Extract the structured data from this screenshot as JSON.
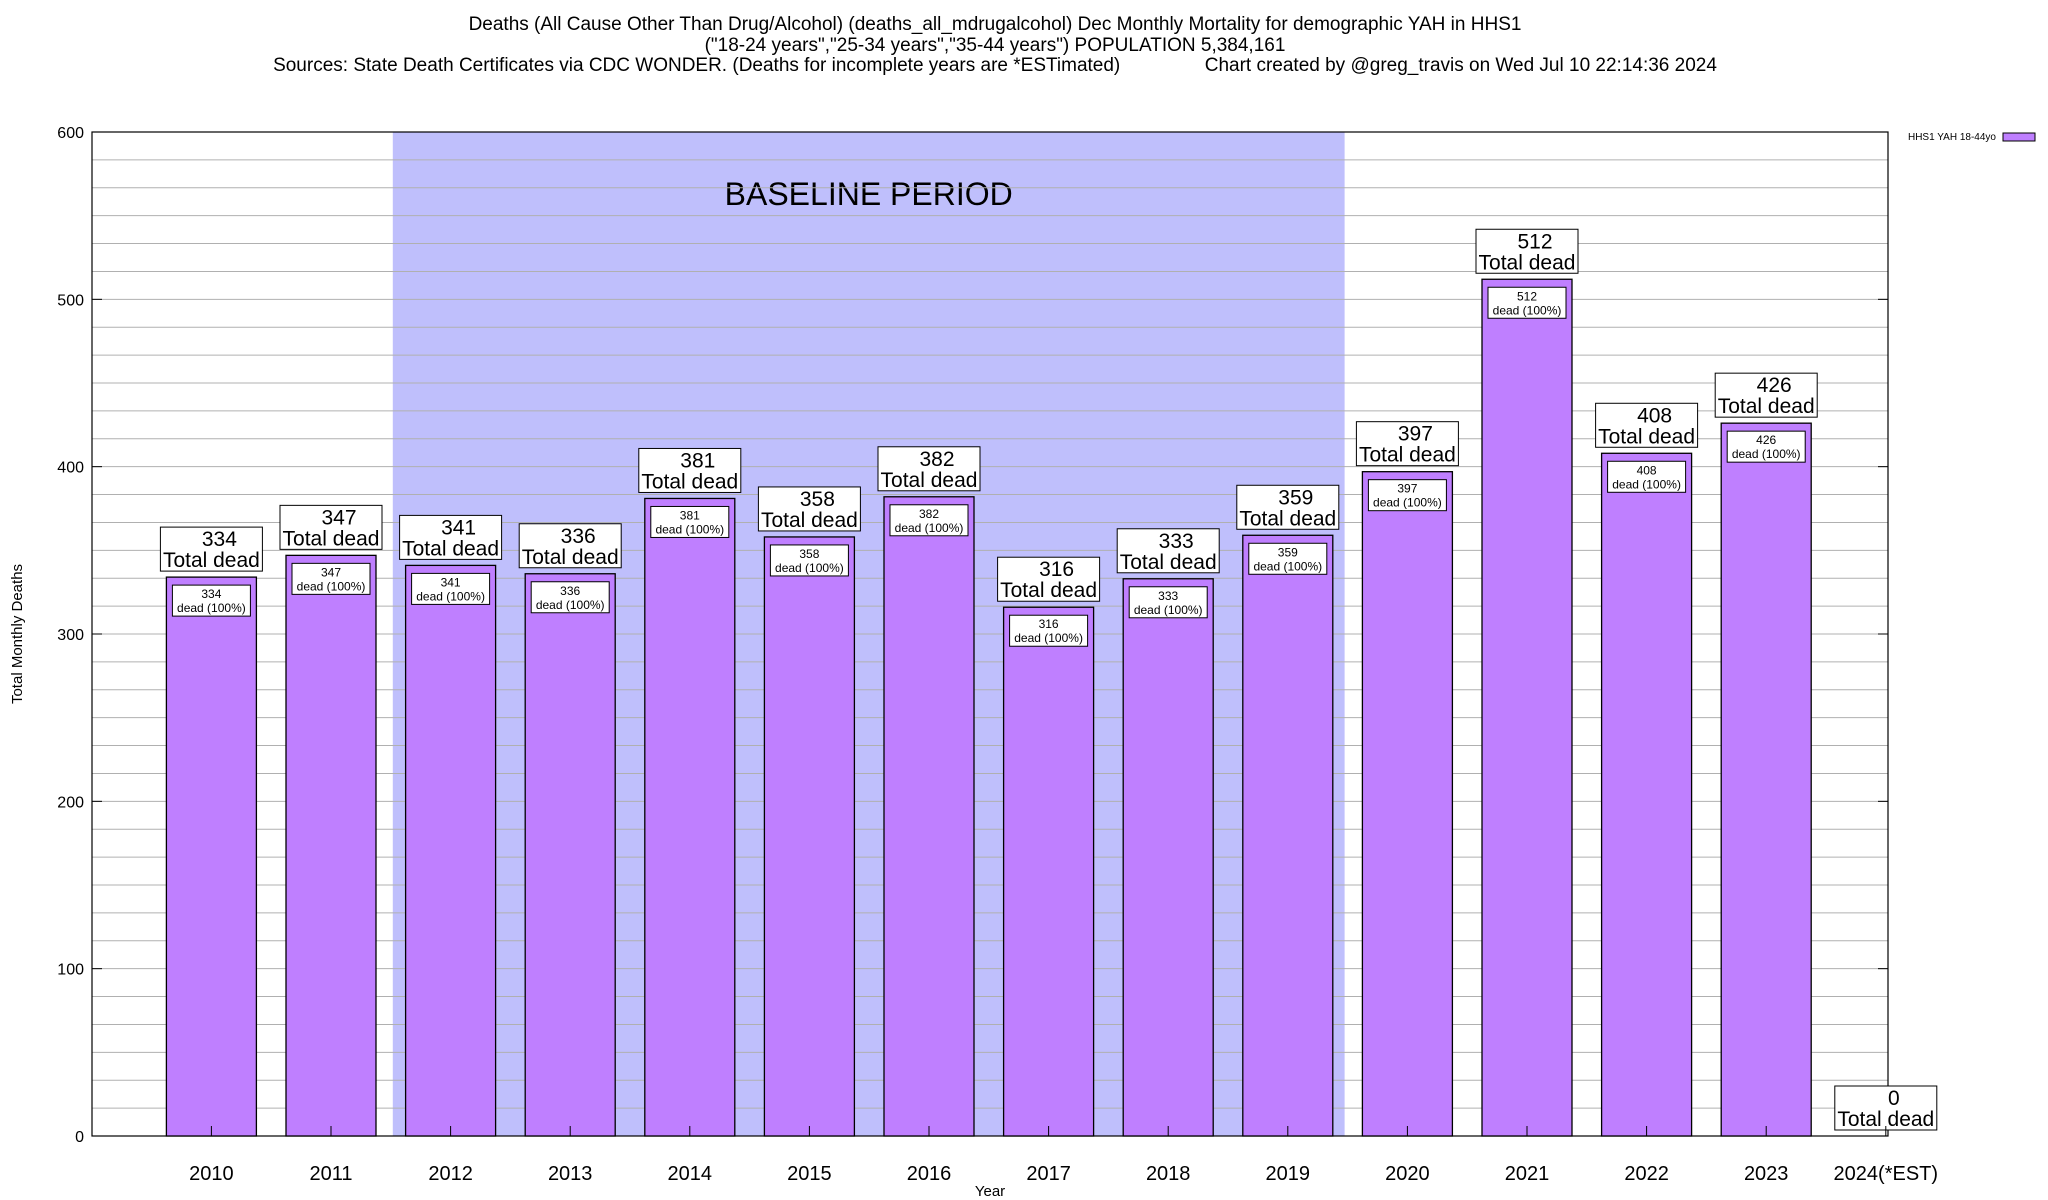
{
  "title_lines": [
    "Deaths (All Cause Other Than Drug/Alcohol) (deaths_all_mdrugalcohol) Dec Monthly Mortality for demographic YAH in HHS1",
    "(\"18-24 years\",\"25-34 years\",\"35-44 years\") POPULATION 5,384,161",
    "Sources: State Death Certificates via CDC WONDER. (Deaths for incomplete years are *ESTimated)                Chart created by @greg_travis on Wed Jul 10 22:14:36 2024"
  ],
  "chart_data": {
    "type": "bar",
    "categories": [
      "2010",
      "2011",
      "2012",
      "2013",
      "2014",
      "2015",
      "2016",
      "2017",
      "2018",
      "2019",
      "2020",
      "2021",
      "2022",
      "2023",
      "2024(*EST)"
    ],
    "series": [
      {
        "name": "HHS1 YAH 18-44yo",
        "values": [
          334,
          347,
          341,
          336,
          381,
          358,
          382,
          316,
          333,
          359,
          397,
          512,
          408,
          426,
          0
        ]
      }
    ],
    "top_label_suffix": "Total dead",
    "inner_label_suffix": "dead (100%)",
    "xlabel": "Year",
    "ylabel": "Total Monthly Deaths",
    "ylim": [
      0,
      600
    ],
    "yticks": [
      0,
      100,
      200,
      300,
      400,
      500,
      600
    ],
    "grid": true,
    "legend_position": "top-right",
    "baseline_period": {
      "label": "BASELINE PERIOD",
      "start": "2012",
      "end": "2019"
    },
    "colors": {
      "bar_fill": "#bf7fff",
      "bar_stroke": "#000000",
      "baseline_fill": "#bfbffc",
      "grid": "#b0b0b0"
    }
  }
}
